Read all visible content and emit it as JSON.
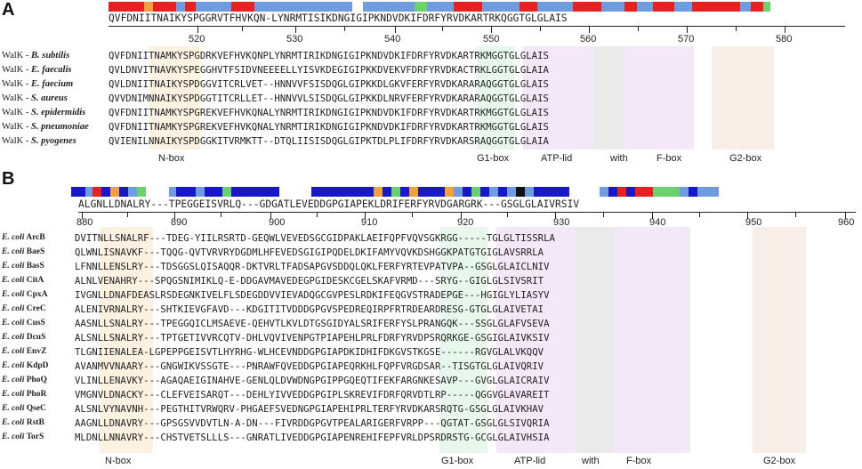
{
  "panel_a": {
    "letter": "A",
    "consensus": "QVFDNIITNAIKYSPGGRVTFHVKQN-LYNRMTISIKDNGIGIPKNDVDKIFDRFYRVDKARTRKQGGTGLGLAIS",
    "ruler_numbers": [
      "520",
      "530",
      "540",
      "550",
      "560",
      "570",
      "580"
    ],
    "rows": [
      {
        "prefix": "WalK - ",
        "species": "B. subtilis",
        "seq": "QVFDNIITNAMKYSPGDRKVEFHVKQNPLYNRMTIRIKDNGIGIPKNDVDKIFDRFYRVDKARTRKMGGTGLGLAIS"
      },
      {
        "prefix": "WalK - ",
        "species": "E. faecalis",
        "seq": "QVLDNVITNAVKYSPEGGHVTFSIDVNEEEELLYISVKDEGIGIPKKDVEKVFDRFYRVDKACTRKLGGTGLGLAIA"
      },
      {
        "prefix": "WalK - ",
        "species": "E. faecium",
        "seq": "QVLDNIITNAIKYSPDGGVITCRLVET--HNNVVFSISDQGLGIPKKDLGKVFERFYRVDKARARAQGGTGLGLAIS"
      },
      {
        "prefix": "WalK - ",
        "species": "S. aureus",
        "seq": "QVVDNIMNNAIKYSPDGGTITCRLLET--HNNVVLSISDQGLGIPKKDLNRVFERFYRVDKARARAQGGTGLGLAIS"
      },
      {
        "prefix": "WalK - ",
        "species": "S. epidermidis",
        "seq": "QVFDNIITNAMKYSPGREKVEFHVKQNALYNRMTIRIKDNGIGIPKNDVDKIFDRFYRVDKARTRKMGGTGLGLAIS"
      },
      {
        "prefix": "WalK - ",
        "species": "S. pneumoniae",
        "seq": "QVFDNIITNAMKYSPGREKVEFHVKQNALYNRMTIRIKDNGIGIPKNDVDKIFDRFYRVDKARTRKMGGTGLGLAIS"
      },
      {
        "prefix": "WalK - ",
        "species": "S. pyogenes",
        "seq": "QVIENILNNAIKYSPDGGKITVRMKTT--DTQLIISISDQGLGIPKTDLPLIFDRFYRVDKARSRAQGGTGLGLAIA"
      }
    ],
    "boxes": [
      "N-box",
      "G1-box",
      "ATP-lid",
      "with",
      "F-box",
      "G2-box"
    ]
  },
  "panel_b": {
    "letter": "B",
    "consensus": "ALGNLLDNALRY---TPEGGEISVRLQ---GDGATLEVEDDGPGIAPEKLDRIFERFYRVDGARGRK---GSGLGLAIVRSIV",
    "ruler_numbers": [
      "880",
      "890",
      "900",
      "910",
      "920",
      "930",
      "940",
      "950",
      "960"
    ],
    "rows": [
      {
        "prefix": "E. coli",
        "name": "ArcB",
        "seq": "DVITNLLSNALRF---TDEG-YIILRSRTD-GEQWLVEVEDSGCGIDPAKLAEIFQPFVQVSGKRGG-----TGLGLTISSRLA"
      },
      {
        "prefix": "E. coli",
        "name": "BaeS",
        "seq": "QLWNLISNAVKF---TQQG-QVTVRVRYDGDMLHFEVEDSGIGIPQDELDKIFAMYVQVKDSHGGKPATGTGIGLAVSRRLA"
      },
      {
        "prefix": "E. coli",
        "name": "BasS",
        "seq": "LFNNLLENSLRY---TDSGGSLQISAQQR-DKTVRLTFADSAPGVSDDQLQKLFERFYRTEVPATVPA--GSGLGLAICLNIV"
      },
      {
        "prefix": "E. coli",
        "name": "CitA",
        "seq": "ALNLVENAHRY---SPQGSNIMIKLQ-E-DDGAVMAVEDEGPGIDESKCGELSKAFVRMD---SRYG--GIGLGLSIVSRIT"
      },
      {
        "prefix": "E. coli",
        "name": "CpxA",
        "seq": "IVGNLLDNAFDEASLRSDEGNKIVELFLSDEGDDVVIEVADQGCGVPESLRDKIFEQGVSTRADEPGE---HGIGLYLIASYV"
      },
      {
        "prefix": "E. coli",
        "name": "CreC",
        "seq": "ALENIVRNALRY---SHTKIEVGFAVD---KDGITITVDDDGPGVSPEDREQIRPFRTRDEARDRESG-GTGLGLAIVETAI"
      },
      {
        "prefix": "E. coli",
        "name": "CusS",
        "seq": "AASNLLSNALRY---TPEGGQICLMSAEVE-QEHVTLKVLDTGSGIDYALSRIFERFYSLPRANGQK---SSGLGLAFVSEVA"
      },
      {
        "prefix": "E. coli",
        "name": "DcuS",
        "seq": "ALSNLLSNALRY---TPTGETIVVRCQTV-DHLVQVIVENPGTPIAPEHLPRLFDRFYRVDPSRQRKGE-GSGIGLAIVKSIV"
      },
      {
        "prefix": "E. coli",
        "name": "EnvZ",
        "seq": "TLGNIIENALEA-LGPEPPGEISVTLHYRHG-WLHCEVNDDGPGIAPDKIDHIFDKGVSTKGSE------RGVGLALVKQQV"
      },
      {
        "prefix": "E. coli",
        "name": "KdpD",
        "seq": "AVANMVVNAARY---GNGWIKVSSGTE---PNRAWFQVEDDGPGIAPEQRKHLFQPFVRGDSAR--TISGTGLGLAIVQRIV"
      },
      {
        "prefix": "E. coli",
        "name": "PhoQ",
        "seq": "VLINLLENAVKY---AGAQAEIGINAHVE-GENLQLDVWDNGPGIPPGQEQTIFEKFARGNKESAVP---GVGLGLAICRAIV"
      },
      {
        "prefix": "E. coli",
        "name": "PhoR",
        "seq": "VMGNVLDNACKY---CLEFVEISARQT---DEHLYIVVEDDGPGIPLSKREVIFDRFQRVDTLRP-----QGGVGLAVAREIT"
      },
      {
        "prefix": "E. coli",
        "name": "QseC",
        "seq": "ALSNLVYNAVNH---PEGTHITVRWQRV-PHGAEFSVEDNGPGIAPEHIPRLTERFYRVDKARSRQTG-GSGLGLAIVKHAV"
      },
      {
        "prefix": "E. coli",
        "name": "RstB",
        "seq": "AAGNLLDNAVRY---GPSGSVVDVTLN-A-DN---FIVRDDGPGVTPEALARIGERFVRPP---QGTAT-GSGLGLSIVQRIA"
      },
      {
        "prefix": "E. coli",
        "name": "TorS",
        "seq": "MLDNLLNNAVRY---CHSTVETSLLLS---GNRATLIVEDDGPGIAPENREHIFEPFVRLDPSRDRSTG-GCGLGLAIVHSIA"
      }
    ],
    "boxes": [
      "N-box",
      "G1-box",
      "ATP-lid",
      "with",
      "F-box",
      "G2-box"
    ]
  }
}
